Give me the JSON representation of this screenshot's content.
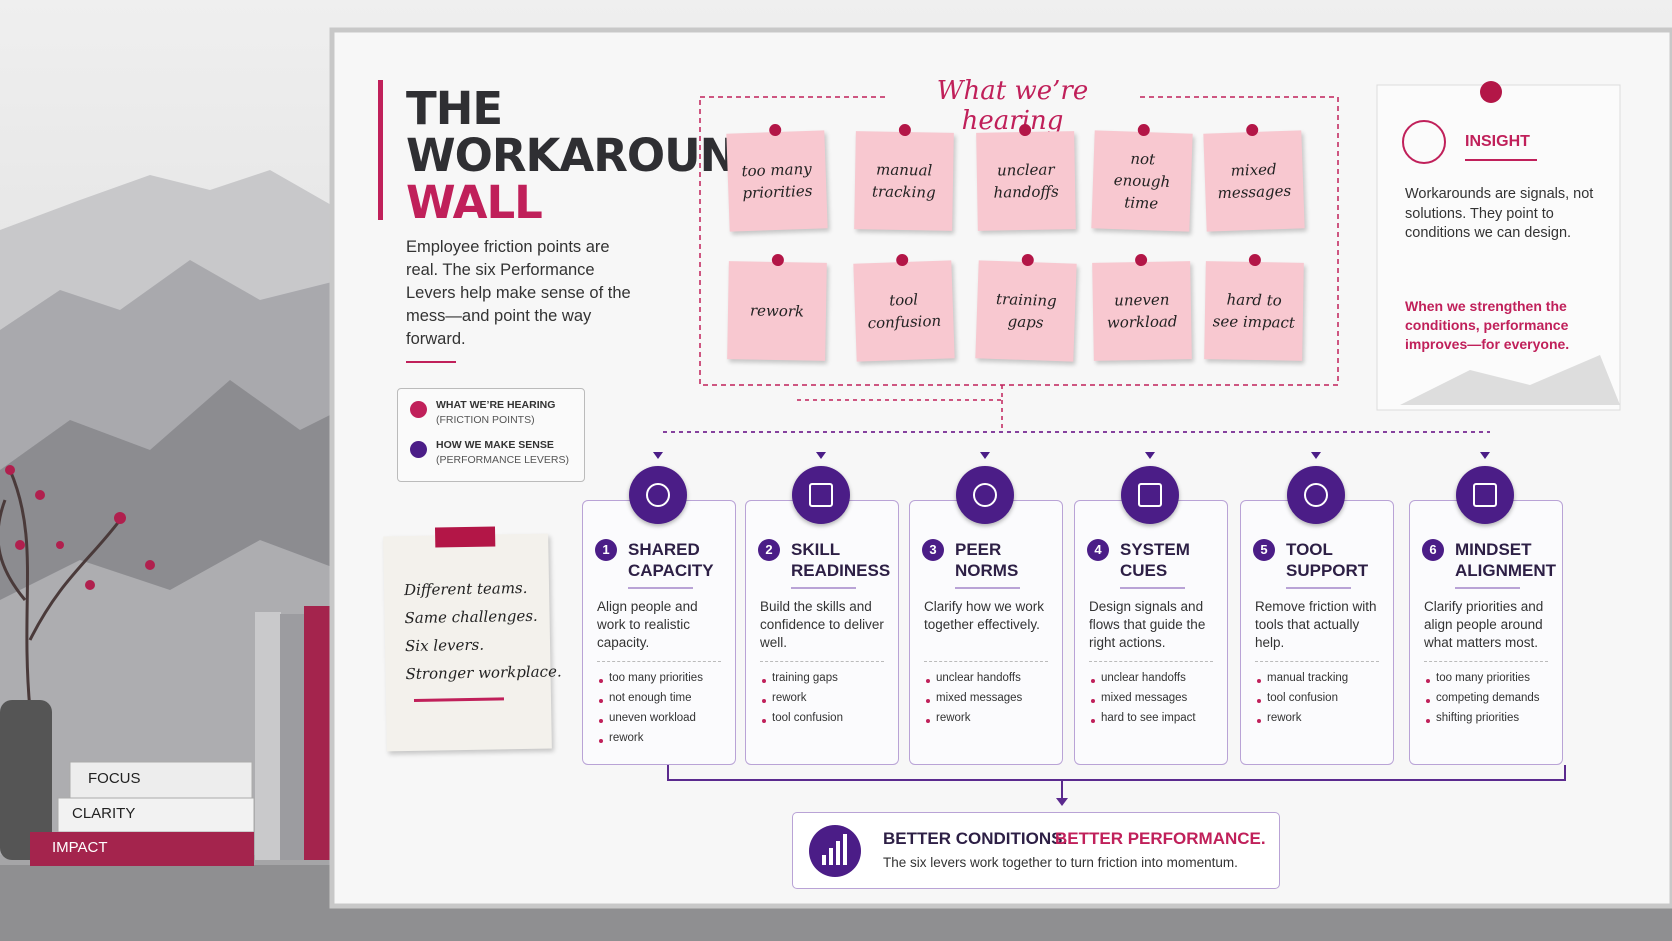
{
  "title": {
    "line1": "THE",
    "line2": "WORKAROUND",
    "line3": "WALL"
  },
  "intro": "Employee friction points are real. The six Performance Levers help make sense of the mess—and point the way forward.",
  "legend": [
    {
      "label": "WHAT WE’RE HEARING",
      "sublabel": "(FRICTION POINTS)"
    },
    {
      "label": "HOW WE MAKE SENSE",
      "sublabel": "(PERFORMANCE LEVERS)"
    }
  ],
  "hearing": {
    "heading": "What we’re hearing",
    "notes": [
      "too many priorities",
      "manual tracking",
      "unclear handoffs",
      "not enough time",
      "mixed messages",
      "rework",
      "tool confusion",
      "training gaps",
      "uneven workload",
      "hard to see impact"
    ]
  },
  "insight": {
    "title": "INSIGHT",
    "body": "Workarounds are signals, not solutions. They point to conditions we can design.",
    "emphasis": "When we strengthen the conditions, performance improves—for everyone."
  },
  "note_card": [
    "Different teams.",
    "Same challenges.",
    "Six levers.",
    "Stronger workplace."
  ],
  "books": [
    "FOCUS",
    "CLARITY",
    "IMPACT"
  ],
  "levers": [
    {
      "number": "1",
      "title": "SHARED CAPACITY",
      "description": "Align people and work to realistic capacity.",
      "items": [
        "too many priorities",
        "not enough time",
        "uneven workload",
        "rework"
      ]
    },
    {
      "number": "2",
      "title": "SKILL READINESS",
      "description": "Build the skills and confidence to deliver well.",
      "items": [
        "training gaps",
        "rework",
        "tool confusion"
      ]
    },
    {
      "number": "3",
      "title": "PEER NORMS",
      "description": "Clarify how we work together effectively.",
      "items": [
        "unclear handoffs",
        "mixed messages",
        "rework"
      ]
    },
    {
      "number": "4",
      "title": "SYSTEM CUES",
      "description": "Design signals and flows that guide the right actions.",
      "items": [
        "unclear handoffs",
        "mixed messages",
        "hard to see impact"
      ]
    },
    {
      "number": "5",
      "title": "TOOL SUPPORT",
      "description": "Remove friction with tools that actually help.",
      "items": [
        "manual tracking",
        "tool confusion",
        "rework"
      ]
    },
    {
      "number": "6",
      "title": "MINDSET ALIGNMENT",
      "description": "Clarify priorities and align people around what matters most.",
      "items": [
        "too many priorities",
        "competing demands",
        "shifting priorities"
      ]
    }
  ],
  "footer": {
    "lead": "BETTER CONDITIONS.",
    "accent": "BETTER PERFORMANCE.",
    "subtitle": "The six levers work together to turn friction into momentum."
  }
}
